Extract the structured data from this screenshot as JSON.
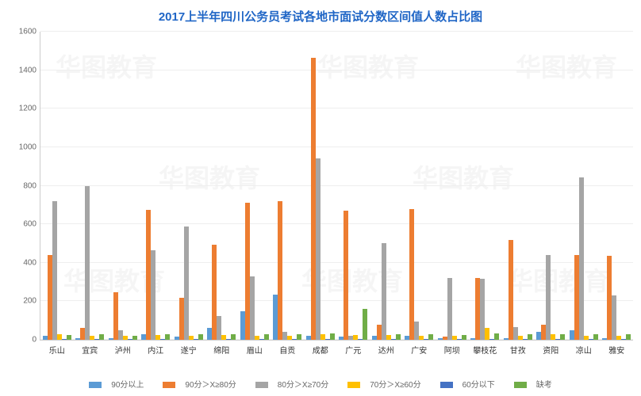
{
  "chart": {
    "type": "bar",
    "title": "2017上半年四川公务员考试各地市面试分数区间值人数占比图",
    "title_color": "#2066c6",
    "title_fontsize": 15,
    "background_color": "#ffffff",
    "grid_color": "#eeeeee",
    "axis_color": "#cccccc",
    "ylim": [
      0,
      1600
    ],
    "ytick_step": 200,
    "yticks": [
      0,
      200,
      400,
      600,
      800,
      1000,
      1200,
      1400,
      1600
    ],
    "categories": [
      "乐山",
      "宜宾",
      "泸州",
      "内江",
      "遂宁",
      "绵阳",
      "眉山",
      "自贡",
      "成都",
      "广元",
      "达州",
      "广安",
      "阿坝",
      "攀枝花",
      "甘孜",
      "资阳",
      "凉山",
      "雅安"
    ],
    "series": [
      {
        "name": "90分以上",
        "color": "#5b9bd5",
        "values": [
          20,
          10,
          10,
          30,
          15,
          60,
          150,
          235,
          20,
          15,
          20,
          20,
          10,
          10,
          10,
          40,
          50,
          10
        ]
      },
      {
        "name": "90分＞X≥80分",
        "color": "#ed7d31",
        "values": [
          440,
          60,
          245,
          675,
          220,
          495,
          710,
          720,
          1465,
          670,
          80,
          680,
          15,
          320,
          520,
          80,
          440,
          435
        ]
      },
      {
        "name": "80分＞X≥70分",
        "color": "#a5a5a5",
        "values": [
          720,
          800,
          50,
          465,
          590,
          125,
          330,
          40,
          940,
          20,
          500,
          95,
          320,
          315,
          65,
          440,
          845,
          230
        ]
      },
      {
        "name": "70分＞X≥60分",
        "color": "#ffc000",
        "values": [
          30,
          20,
          20,
          25,
          20,
          25,
          20,
          20,
          30,
          25,
          25,
          20,
          20,
          60,
          20,
          30,
          20,
          20
        ]
      },
      {
        "name": "60分以下",
        "color": "#4472c4",
        "values": [
          5,
          5,
          5,
          5,
          5,
          5,
          5,
          5,
          5,
          5,
          5,
          5,
          5,
          5,
          5,
          5,
          5,
          5
        ]
      },
      {
        "name": "缺考",
        "color": "#70ad47",
        "values": [
          25,
          30,
          20,
          30,
          30,
          30,
          30,
          30,
          35,
          160,
          30,
          30,
          25,
          35,
          30,
          30,
          30,
          30
        ]
      }
    ],
    "label_fontsize": 10,
    "label_color": "#666666",
    "watermark_text": "华图教育",
    "watermark_sub": "HUATU.COM"
  }
}
